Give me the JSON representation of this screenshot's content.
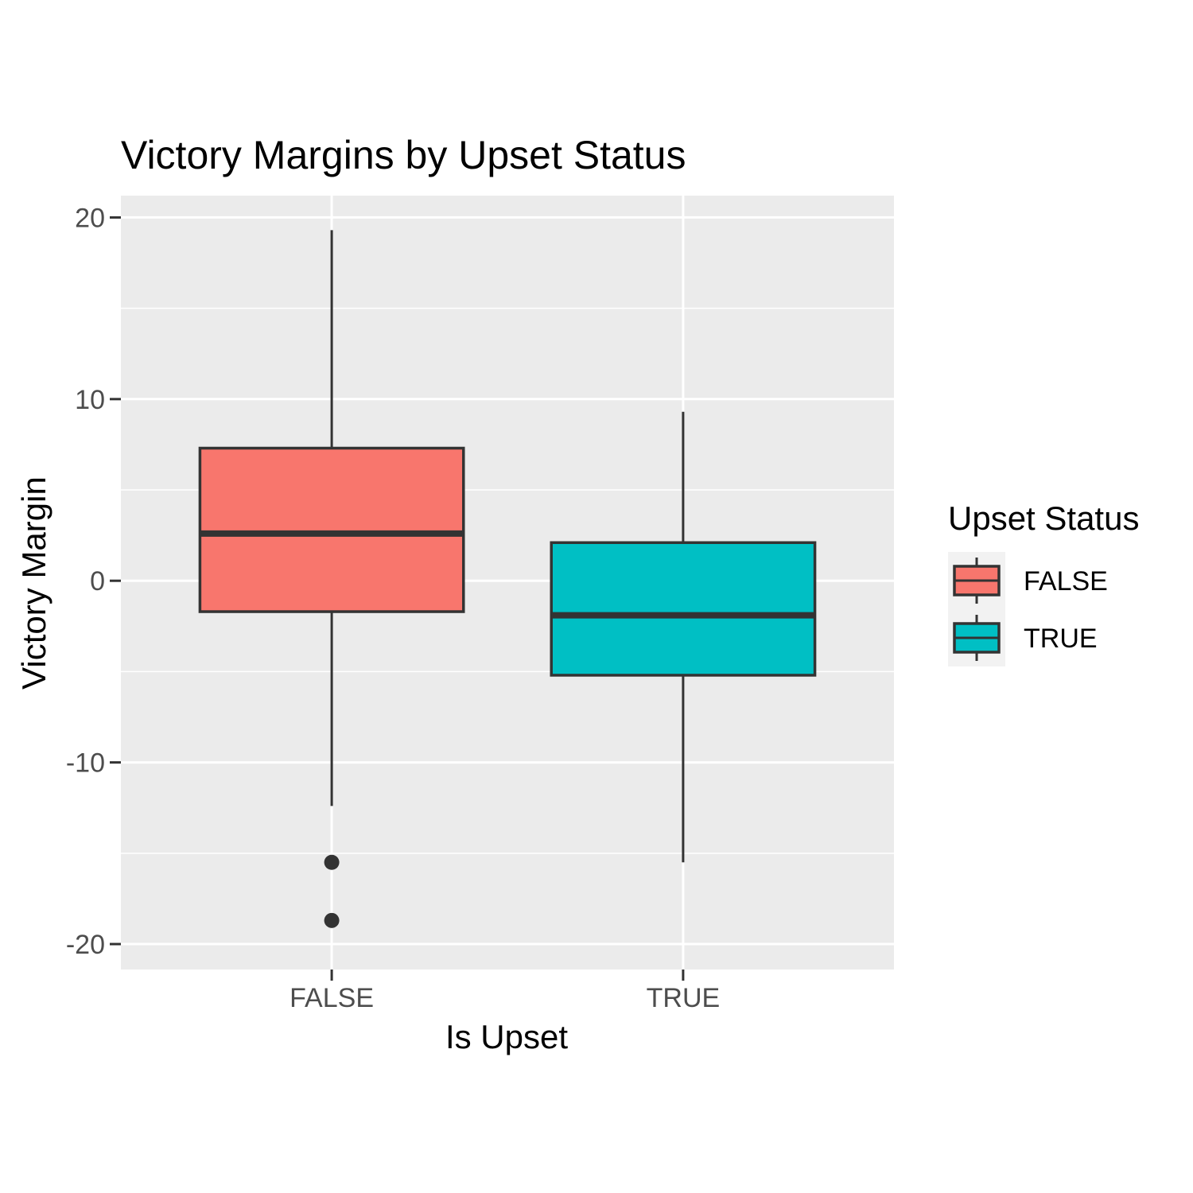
{
  "chart_data": {
    "type": "boxplot",
    "title": "Victory Margins by Upset Status",
    "xlabel": "Is Upset",
    "ylabel": "Victory Margin",
    "ylim": [
      -21.4,
      21.2
    ],
    "y_ticks": [
      -20,
      -10,
      0,
      10,
      20
    ],
    "y_tick_labels": [
      "-20",
      "-10",
      "0",
      "10",
      "20"
    ],
    "grid": true,
    "categories": [
      "FALSE",
      "TRUE"
    ],
    "boxes": [
      {
        "category": "FALSE",
        "fill": "#F8766D",
        "whisker_low": -12.4,
        "q1": -1.7,
        "median": 2.6,
        "q3": 7.3,
        "whisker_high": 19.3,
        "outliers": [
          -15.5,
          -18.7
        ]
      },
      {
        "category": "TRUE",
        "fill": "#00BFC4",
        "whisker_low": -15.5,
        "q1": -5.2,
        "median": -1.9,
        "q3": 2.1,
        "whisker_high": 9.3,
        "outliers": []
      }
    ],
    "legend": {
      "title": "Upset Status",
      "position": "right",
      "entries": [
        {
          "label": "FALSE",
          "fill": "#F8766D"
        },
        {
          "label": "TRUE",
          "fill": "#00BFC4"
        }
      ]
    },
    "colors": {
      "panel_background": "#EBEBEB",
      "grid": "#FFFFFF",
      "box_outline": "#333333"
    }
  }
}
